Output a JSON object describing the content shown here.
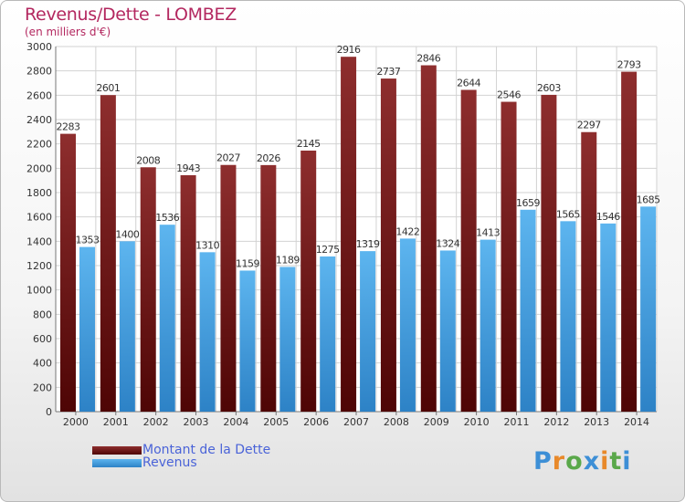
{
  "header": {
    "title": "Revenus/Dette - LOMBEZ",
    "subtitle": "(en milliers d'€)"
  },
  "chart_data": {
    "type": "bar",
    "title": "Revenus/Dette - LOMBEZ",
    "ylabel": "(en milliers d'€)",
    "ylim": [
      0,
      3000
    ],
    "yticks": [
      0,
      200,
      400,
      600,
      800,
      1000,
      1200,
      1400,
      1600,
      1800,
      2000,
      2200,
      2400,
      2600,
      2800,
      3000
    ],
    "grid": true,
    "categories": [
      "2000",
      "2001",
      "2002",
      "2003",
      "2004",
      "2005",
      "2006",
      "2007",
      "2008",
      "2009",
      "2010",
      "2011",
      "2012",
      "2013",
      "2014"
    ],
    "series": [
      {
        "name": "Montant de la Dette",
        "color": "#7a1c1c",
        "values": [
          2283,
          2601,
          2008,
          1943,
          2027,
          2026,
          2145,
          2916,
          2737,
          2846,
          2644,
          2546,
          2603,
          2297,
          2793
        ]
      },
      {
        "name": "Revenus",
        "color": "#3f9ee0",
        "values": [
          1353,
          1400,
          1536,
          1310,
          1159,
          1189,
          1275,
          1319,
          1422,
          1324,
          1413,
          1659,
          1565,
          1546,
          1685
        ]
      }
    ]
  },
  "legend": {
    "items": [
      {
        "label": "Montant de la Dette",
        "color": "#7a1c1c"
      },
      {
        "label": "Revenus",
        "color": "#3f9ee0"
      }
    ]
  },
  "logo": {
    "text": "Proxiti",
    "colors": [
      "#3d8fd6",
      "#e8892a",
      "#5aa84a",
      "#3d8fd6",
      "#e8892a",
      "#5aa84a",
      "#3d8fd6"
    ]
  }
}
